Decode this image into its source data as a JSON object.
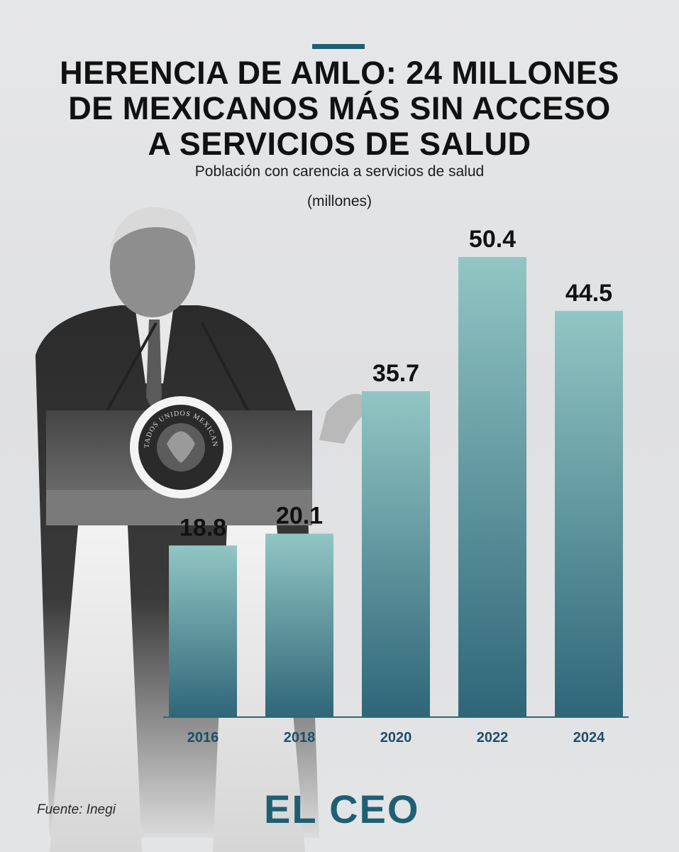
{
  "header": {
    "title_lines": [
      "HERENCIA DE AMLO: 24 MILLONES",
      "DE MEXICANOS MÁS SIN ACCESO",
      "A SERVICIOS DE SALUD"
    ],
    "subtitle": "Población con carencia a servicios de salud",
    "units": "(millones)"
  },
  "photo": {
    "seal_text": "ESTADOS UNIDOS MEXICANOS"
  },
  "chart_data": {
    "type": "bar",
    "title": "HERENCIA DE AMLO: 24 MILLONES DE MEXICANOS MÁS SIN ACCESO A SERVICIOS DE SALUD",
    "subtitle": "Población con carencia a servicios de salud",
    "ylabel": "(millones)",
    "xlabel": "",
    "categories": [
      "2016",
      "2018",
      "2020",
      "2022",
      "2024"
    ],
    "values": [
      18.8,
      20.1,
      35.7,
      50.4,
      44.5
    ],
    "value_labels": [
      "18.8",
      "20.1",
      "35.7",
      "50.4",
      "44.5"
    ],
    "ylim": [
      0,
      50.4
    ],
    "grid": false,
    "legend": "none",
    "colors": {
      "bar_top": "#92c6c4",
      "bar_bottom": "#2f6678",
      "tick_text": "#1e4e68",
      "label_text": "#111111",
      "baseline": "#2f6678"
    }
  },
  "footer": {
    "source": "Fuente: Inegi",
    "logo_text": "EL CEO",
    "logo_color": "#1f5f74"
  }
}
